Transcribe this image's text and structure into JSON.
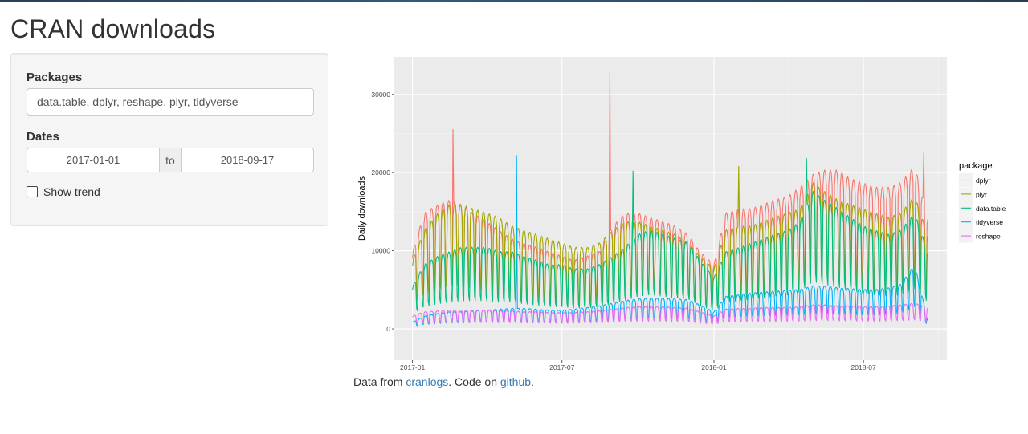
{
  "app": {
    "title": "CRAN downloads"
  },
  "sidebar": {
    "packages_label": "Packages",
    "packages_value": "data.table, dplyr, reshape, plyr, tidyverse",
    "dates_label": "Dates",
    "date_start": "2017-01-01",
    "date_sep": "to",
    "date_end": "2018-09-17",
    "trend_label": "Show trend",
    "trend_checked": false
  },
  "caption": {
    "prefix": "Data from ",
    "link1": "cranlogs",
    "middle": ". Code on ",
    "link2": "github",
    "suffix": "."
  },
  "colors": {
    "panel_bg": "#ebebeb",
    "link": "#337ab7"
  },
  "chart_data": {
    "type": "line",
    "xlabel": "",
    "ylabel": "Daily downloads",
    "x_range": [
      "2016-12-10",
      "2018-10-10"
    ],
    "x_ticks": [
      "2017-01",
      "2017-07",
      "2018-01",
      "2018-07"
    ],
    "x_tick_dates": [
      "2017-01-01",
      "2017-07-01",
      "2018-01-01",
      "2018-07-01"
    ],
    "ylim": [
      -4000,
      34800
    ],
    "y_ticks": [
      0,
      10000,
      20000,
      30000
    ],
    "grid": true,
    "legend_title": "package",
    "legend_position": "right",
    "series": [
      {
        "name": "dplyr",
        "color": "#F8766D",
        "x": [
          "2017-01-01",
          "2017-01-15",
          "2017-02-01",
          "2017-02-15",
          "2017-03-01",
          "2017-03-15",
          "2017-04-01",
          "2017-04-15",
          "2017-05-01",
          "2017-05-15",
          "2017-06-01",
          "2017-06-15",
          "2017-07-01",
          "2017-07-15",
          "2017-08-01",
          "2017-08-15",
          "2017-09-01",
          "2017-09-15",
          "2017-10-01",
          "2017-10-15",
          "2017-11-01",
          "2017-11-15",
          "2017-12-01",
          "2017-12-15",
          "2018-01-01",
          "2018-01-15",
          "2018-02-01",
          "2018-02-15",
          "2018-03-01",
          "2018-03-15",
          "2018-04-01",
          "2018-04-15",
          "2018-05-01",
          "2018-05-15",
          "2018-06-01",
          "2018-06-15",
          "2018-07-01",
          "2018-07-15",
          "2018-08-01",
          "2018-08-15",
          "2018-09-01",
          "2018-09-17"
        ],
        "values": [
          9000,
          13500,
          14500,
          15000,
          14500,
          13500,
          12500,
          11500,
          10500,
          10000,
          9500,
          9000,
          8500,
          8000,
          8500,
          9000,
          12000,
          13500,
          13500,
          13000,
          12500,
          12000,
          11000,
          9000,
          7500,
          13500,
          14000,
          14000,
          14500,
          15000,
          15500,
          16500,
          18000,
          18500,
          18500,
          17500,
          17000,
          16500,
          16500,
          17000,
          19000,
          13000
        ]
      },
      {
        "name": "plyr",
        "color": "#A3A500",
        "x": [
          "2017-01-01",
          "2017-01-15",
          "2017-02-01",
          "2017-02-15",
          "2017-03-01",
          "2017-03-15",
          "2017-04-01",
          "2017-04-15",
          "2017-05-01",
          "2017-05-15",
          "2017-06-01",
          "2017-06-15",
          "2017-07-01",
          "2017-07-15",
          "2017-08-01",
          "2017-08-15",
          "2017-09-01",
          "2017-09-15",
          "2017-10-01",
          "2017-10-15",
          "2017-11-01",
          "2017-11-15",
          "2017-12-01",
          "2017-12-15",
          "2018-01-01",
          "2018-01-15",
          "2018-02-01",
          "2018-02-15",
          "2018-03-01",
          "2018-03-15",
          "2018-04-01",
          "2018-04-15",
          "2018-05-01",
          "2018-05-15",
          "2018-06-01",
          "2018-06-15",
          "2018-07-01",
          "2018-07-15",
          "2018-08-01",
          "2018-08-15",
          "2018-09-01",
          "2018-09-17"
        ],
        "values": [
          8000,
          11500,
          13500,
          14500,
          14500,
          14000,
          13500,
          13000,
          12000,
          11500,
          11000,
          10500,
          10000,
          9500,
          9500,
          10000,
          11500,
          12500,
          12500,
          12000,
          11500,
          11000,
          10000,
          8500,
          7000,
          11500,
          12000,
          12000,
          12500,
          13000,
          13500,
          14000,
          17000,
          16000,
          15000,
          14500,
          14000,
          13500,
          13000,
          13500,
          15500,
          11000
        ]
      },
      {
        "name": "data.table",
        "color": "#00BF7D",
        "x": [
          "2017-01-01",
          "2017-01-15",
          "2017-02-01",
          "2017-02-15",
          "2017-03-01",
          "2017-03-15",
          "2017-04-01",
          "2017-04-15",
          "2017-05-01",
          "2017-05-15",
          "2017-06-01",
          "2017-06-15",
          "2017-07-01",
          "2017-07-15",
          "2017-08-01",
          "2017-08-15",
          "2017-09-01",
          "2017-09-15",
          "2017-10-01",
          "2017-10-15",
          "2017-11-01",
          "2017-11-15",
          "2017-12-01",
          "2017-12-15",
          "2018-01-01",
          "2018-01-15",
          "2018-02-01",
          "2018-02-15",
          "2018-03-01",
          "2018-03-15",
          "2018-04-01",
          "2018-04-15",
          "2018-05-01",
          "2018-05-15",
          "2018-06-01",
          "2018-06-15",
          "2018-07-01",
          "2018-07-15",
          "2018-08-01",
          "2018-08-15",
          "2018-09-01",
          "2018-09-17"
        ],
        "values": [
          5000,
          7500,
          8500,
          9000,
          9500,
          9500,
          9500,
          9000,
          9000,
          8500,
          8000,
          7500,
          7500,
          7000,
          7000,
          7500,
          8500,
          9500,
          11000,
          11500,
          11000,
          10500,
          10000,
          8000,
          6000,
          9000,
          9500,
          10000,
          10500,
          11000,
          11500,
          12500,
          16000,
          15000,
          14000,
          13000,
          12000,
          11500,
          11000,
          11500,
          13500,
          9000
        ]
      },
      {
        "name": "tidyverse",
        "color": "#00B0F6",
        "x": [
          "2017-01-01",
          "2017-01-15",
          "2017-02-01",
          "2017-02-15",
          "2017-03-01",
          "2017-03-15",
          "2017-04-01",
          "2017-04-15",
          "2017-05-01",
          "2017-05-15",
          "2017-06-01",
          "2017-06-15",
          "2017-07-01",
          "2017-07-15",
          "2017-08-01",
          "2017-08-15",
          "2017-09-01",
          "2017-09-15",
          "2017-10-01",
          "2017-10-15",
          "2017-11-01",
          "2017-11-15",
          "2017-12-01",
          "2017-12-15",
          "2018-01-01",
          "2018-01-15",
          "2018-02-01",
          "2018-02-15",
          "2018-03-01",
          "2018-03-15",
          "2018-04-01",
          "2018-04-15",
          "2018-05-01",
          "2018-05-15",
          "2018-06-01",
          "2018-06-15",
          "2018-07-01",
          "2018-07-15",
          "2018-08-01",
          "2018-08-15",
          "2018-09-01",
          "2018-09-17"
        ],
        "values": [
          800,
          1500,
          1800,
          2000,
          2000,
          2100,
          2200,
          2300,
          2400,
          2400,
          2300,
          2200,
          2200,
          2300,
          2500,
          2700,
          3000,
          3300,
          3500,
          3600,
          3600,
          3500,
          3400,
          2800,
          2000,
          3800,
          4000,
          4200,
          4300,
          4400,
          4500,
          4600,
          5000,
          5000,
          4800,
          4700,
          4600,
          4600,
          4800,
          5200,
          7500,
          1000
        ]
      },
      {
        "name": "reshape",
        "color": "#E76BF3",
        "x": [
          "2017-01-01",
          "2017-01-15",
          "2017-02-01",
          "2017-02-15",
          "2017-03-01",
          "2017-03-15",
          "2017-04-01",
          "2017-04-15",
          "2017-05-01",
          "2017-05-15",
          "2017-06-01",
          "2017-06-15",
          "2017-07-01",
          "2017-07-15",
          "2017-08-01",
          "2017-08-15",
          "2017-09-01",
          "2017-09-15",
          "2017-10-01",
          "2017-10-15",
          "2017-11-01",
          "2017-11-15",
          "2017-12-01",
          "2017-12-15",
          "2018-01-01",
          "2018-01-15",
          "2018-02-01",
          "2018-02-15",
          "2018-03-01",
          "2018-03-15",
          "2018-04-01",
          "2018-04-15",
          "2018-05-01",
          "2018-05-15",
          "2018-06-01",
          "2018-06-15",
          "2018-07-01",
          "2018-07-15",
          "2018-08-01",
          "2018-08-15",
          "2018-09-01",
          "2018-09-17"
        ],
        "values": [
          1500,
          2000,
          2100,
          2200,
          2200,
          2200,
          2200,
          2100,
          2100,
          2000,
          2000,
          1900,
          1900,
          1900,
          2000,
          2100,
          2300,
          2500,
          2600,
          2600,
          2600,
          2500,
          2400,
          2000,
          1500,
          2300,
          2400,
          2400,
          2500,
          2500,
          2500,
          2600,
          2800,
          2800,
          2700,
          2700,
          2600,
          2600,
          2700,
          2800,
          3000,
          2500
        ]
      }
    ],
    "spikes": [
      {
        "series": "dplyr",
        "x": "2017-02-19",
        "y": 25500
      },
      {
        "series": "dplyr",
        "x": "2017-08-28",
        "y": 32800
      },
      {
        "series": "dplyr",
        "x": "2018-09-12",
        "y": 22500
      },
      {
        "series": "tidyverse",
        "x": "2017-05-07",
        "y": 22200
      },
      {
        "series": "data.table",
        "x": "2017-09-25",
        "y": 20200
      },
      {
        "series": "data.table",
        "x": "2018-04-23",
        "y": 21800
      },
      {
        "series": "plyr",
        "x": "2018-01-31",
        "y": 20800
      }
    ]
  }
}
